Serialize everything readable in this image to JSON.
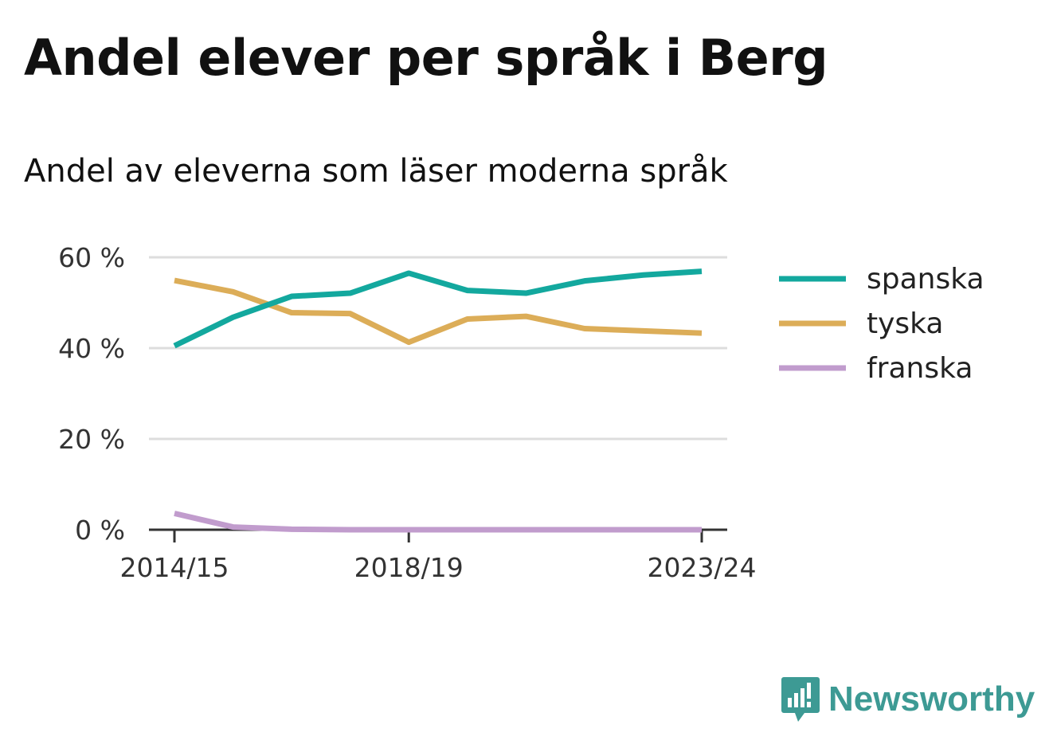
{
  "title": "Andel elever per språk i Berg",
  "subtitle": "Andel av eleverna som läser moderna språk",
  "brand": {
    "name": "Newsworthy",
    "color": "#3d9a94"
  },
  "chart_data": {
    "type": "line",
    "x": [
      "2014/15",
      "2015/16",
      "2016/17",
      "2017/18",
      "2018/19",
      "2019/20",
      "2020/21",
      "2021/22",
      "2022/23",
      "2023/24"
    ],
    "x_tick_labels": [
      "2014/15",
      "2018/19",
      "2023/24"
    ],
    "y_ticks": [
      0,
      20,
      40,
      60
    ],
    "y_tick_labels": [
      "0 %",
      "20 %",
      "40 %",
      "60 %"
    ],
    "ylim": [
      0,
      60
    ],
    "grid": true,
    "legend_position": "right",
    "series": [
      {
        "name": "spanska",
        "color": "#13a89e",
        "values": [
          40.5,
          46.8,
          51.4,
          52.1,
          56.5,
          52.7,
          52.1,
          54.8,
          56.1,
          56.9
        ]
      },
      {
        "name": "tyska",
        "color": "#dcad58",
        "values": [
          54.9,
          52.4,
          47.8,
          47.6,
          41.3,
          46.4,
          47.0,
          44.3,
          43.8,
          43.3
        ]
      },
      {
        "name": "franska",
        "color": "#c19ccd",
        "values": [
          3.6,
          0.6,
          0.1,
          0.0,
          0.0,
          0.0,
          0.0,
          0.0,
          0.0,
          0.0
        ]
      }
    ]
  }
}
